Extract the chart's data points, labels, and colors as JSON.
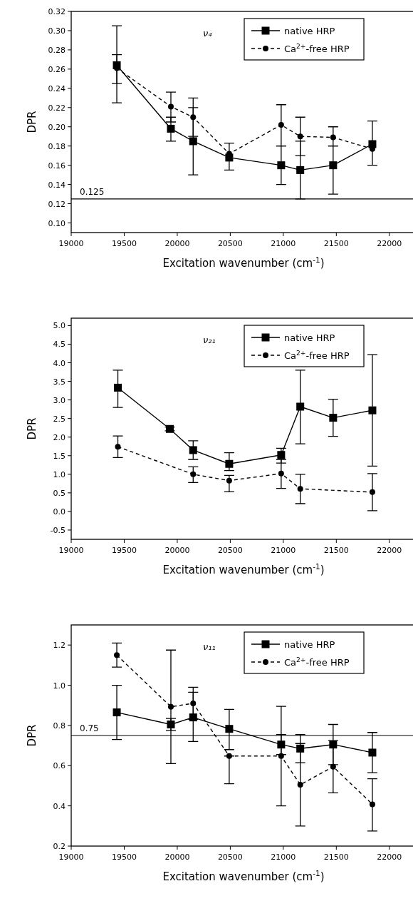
{
  "chart_data": [
    {
      "type": "line",
      "annotations": [
        "ν₄"
      ],
      "xlabel": "Excitation wavenumber (cm$^{-1}$)",
      "ylabel": "DPR",
      "x": [
        19430,
        19940,
        20150,
        20490,
        20980,
        21160,
        21470,
        21840
      ],
      "xlim": [
        19000,
        22250
      ],
      "xticks": [
        19000,
        19500,
        20000,
        20500,
        21000,
        21500,
        22000
      ],
      "ylim": [
        0.09,
        0.32
      ],
      "yticks": [
        {
          "value": 0.1,
          "label": "0.10"
        },
        0.12,
        0.14,
        0.16,
        0.18,
        {
          "value": 0.2,
          "label": "0.20"
        },
        0.22,
        0.24,
        0.26,
        0.28,
        {
          "value": 0.3,
          "label": "0.30"
        },
        0.32
      ],
      "legend": "top right",
      "ref_lines": [
        {
          "axis": "y",
          "value": 0.125,
          "label": "0.125"
        }
      ],
      "series": [
        {
          "name": "native HRP",
          "color": "#000000",
          "marker": "square",
          "line_style": "solid",
          "values": [
            0.264,
            0.198,
            0.185,
            0.168,
            0.16,
            0.155,
            0.16,
            0.182
          ],
          "errors": [
            [
              0.225,
              0.305
            ],
            [
              0.185,
              0.21
            ],
            [
              0.15,
              0.22
            ],
            [
              0.155,
              0.183
            ],
            [
              0.14,
              0.18
            ],
            [
              0.125,
              0.185
            ],
            [
              0.13,
              0.18
            ],
            [
              0.16,
              0.206
            ]
          ]
        },
        {
          "name": "Ca$^{2+}$-free HRP",
          "color": "#000000",
          "marker": "circle",
          "line_style": "dashed",
          "values": [
            0.261,
            0.221,
            0.21,
            0.172,
            0.202,
            0.19,
            0.189,
            0.177
          ],
          "errors": [
            [
              0.245,
              0.275
            ],
            [
              0.205,
              0.236
            ],
            [
              0.19,
              0.23
            ],
            null,
            [
              0.18,
              0.223
            ],
            [
              0.17,
              0.21
            ],
            [
              0.18,
              0.2
            ],
            null
          ]
        }
      ]
    },
    {
      "type": "line",
      "annotations": [
        "ν₂₁"
      ],
      "xlabel": "Excitation wavenumber (cm$^{-1}$)",
      "ylabel": "DPR",
      "xlim": [
        19000,
        22250
      ],
      "xticks": [
        19000,
        19500,
        20000,
        20500,
        21000,
        21500,
        22000
      ],
      "ylim": [
        -0.75,
        5.2
      ],
      "yticks": [
        -0.5,
        {
          "value": 0,
          "label": "0.0"
        },
        0.5,
        {
          "value": 1,
          "label": "1.0"
        },
        1.5,
        {
          "value": 2,
          "label": "2.0"
        },
        2.5,
        {
          "value": 3,
          "label": "3.0"
        },
        3.5,
        {
          "value": 4,
          "label": "4.0"
        },
        4.5,
        {
          "value": 5,
          "label": "5.0"
        }
      ],
      "legend": "top right",
      "series": [
        {
          "name": "native HRP",
          "color": "#000000",
          "marker": "square",
          "line_style": "solid",
          "x": [
            19440,
            19930,
            20150,
            20490,
            20980,
            21160,
            21470,
            21840
          ],
          "values": [
            3.33,
            2.22,
            1.65,
            1.28,
            1.52,
            2.82,
            2.52,
            2.72
          ],
          "errors": [
            [
              2.8,
              3.8
            ],
            [
              2.17,
              2.27
            ],
            [
              1.4,
              1.9
            ],
            [
              1.1,
              1.58
            ],
            [
              1.3,
              1.7
            ],
            [
              1.82,
              3.8
            ],
            [
              2.02,
              3.02
            ],
            [
              1.22,
              4.22
            ]
          ]
        },
        {
          "name": "Ca$^{2+}$-free HRP",
          "color": "#000000",
          "marker": "circle",
          "line_style": "dashed",
          "x": [
            19440,
            20150,
            20490,
            20980,
            21160,
            21840
          ],
          "values": [
            1.74,
            1.0,
            0.83,
            1.02,
            0.61,
            0.52
          ],
          "errors": [
            [
              1.45,
              2.03
            ],
            [
              0.78,
              1.2
            ],
            [
              0.53,
              0.97
            ],
            [
              0.62,
              1.4
            ],
            [
              0.21,
              1.0
            ],
            [
              0.02,
              1.02
            ]
          ]
        }
      ]
    },
    {
      "type": "line",
      "annotations": [
        "ν₁₁"
      ],
      "xlabel": "Excitation wavenumber (cm$^{-1}$)",
      "ylabel": "DPR",
      "x": [
        19430,
        19940,
        20150,
        20490,
        20980,
        21160,
        21470,
        21840
      ],
      "xlim": [
        19000,
        22250
      ],
      "xticks": [
        19000,
        19500,
        20000,
        20500,
        21000,
        21500,
        22000
      ],
      "ylim": [
        0.2,
        1.3
      ],
      "yticks": [
        0.2,
        0.4,
        0.6,
        0.8,
        {
          "value": 1,
          "label": "1.0"
        },
        1.2
      ],
      "legend": "top right",
      "ref_lines": [
        {
          "axis": "y",
          "value": 0.75,
          "label": "0.75"
        }
      ],
      "series": [
        {
          "name": "native HRP",
          "color": "#000000",
          "marker": "square",
          "line_style": "solid",
          "values": [
            0.865,
            0.805,
            0.84,
            0.783,
            0.705,
            0.685,
            0.705,
            0.665
          ],
          "errors": [
            [
              0.73,
              1.0
            ],
            [
              0.775,
              0.835
            ],
            [
              0.72,
              0.965
            ],
            [
              0.68,
              0.88
            ],
            [
              0.655,
              0.755
            ],
            [
              0.615,
              0.755
            ],
            [
              0.605,
              0.805
            ],
            [
              0.565,
              0.765
            ]
          ]
        },
        {
          "name": "Ca$^{2+}$-free HRP",
          "color": "#000000",
          "marker": "circle",
          "line_style": "dashed",
          "values": [
            1.15,
            0.893,
            0.91,
            0.648,
            0.648,
            0.505,
            0.595,
            0.408
          ],
          "errors": [
            [
              1.09,
              1.21
            ],
            [
              0.61,
              1.175
            ],
            [
              0.83,
              0.99
            ],
            [
              0.51,
              0.648
            ],
            [
              0.4,
              0.895
            ],
            [
              0.3,
              0.71
            ],
            [
              0.465,
              0.725
            ],
            [
              0.275,
              0.535
            ]
          ]
        }
      ]
    }
  ]
}
